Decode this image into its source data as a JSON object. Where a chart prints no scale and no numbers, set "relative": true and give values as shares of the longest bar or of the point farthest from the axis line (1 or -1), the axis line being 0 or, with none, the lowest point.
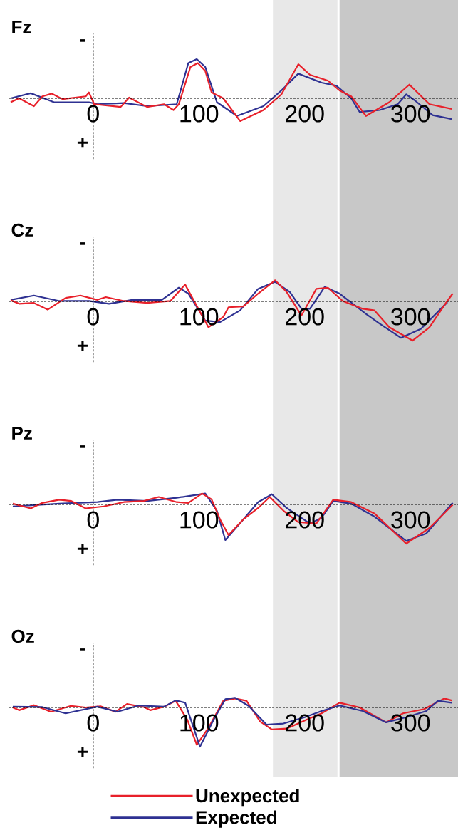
{
  "chart_data": [
    {
      "type": "line",
      "title": "Fz",
      "relative": true,
      "xlim": [
        -80,
        345
      ],
      "xticks": [
        0,
        100,
        200,
        300
      ],
      "tick_labels": "x",
      "annotations": [
        "-",
        "+"
      ],
      "bands": [
        {
          "axis": "x",
          "from": 170,
          "to": 231,
          "color": "#e8e8e8"
        },
        {
          "axis": "x",
          "from": 233,
          "to": 345,
          "color": "#c8c8c8"
        }
      ],
      "series": [
        {
          "color": "#2e3192",
          "x": [
            -78,
            -59,
            -37,
            -4,
            4,
            29,
            51,
            79,
            90,
            98,
            106,
            117,
            136,
            161,
            178,
            194,
            216,
            230,
            244,
            252,
            271,
            288,
            296,
            304,
            321,
            339
          ],
          "values": [
            0,
            0.13,
            -0.1,
            -0.1,
            -0.15,
            -0.12,
            -0.2,
            -0.15,
            0.9,
            1.0,
            0.8,
            -0.1,
            -0.45,
            -0.2,
            0.2,
            0.63,
            0.4,
            0.32,
            0,
            -0.35,
            -0.3,
            -0.15,
            0.1,
            -0.05,
            -0.43,
            -0.53
          ]
        },
        {
          "color": "#e8202a",
          "x": [
            -78,
            -70,
            -56,
            -48,
            -39,
            -29,
            -7,
            -4,
            1,
            26,
            34,
            51,
            67,
            76,
            81,
            92,
            99,
            106,
            112,
            123,
            139,
            161,
            178,
            194,
            205,
            222,
            233,
            244,
            258,
            280,
            299,
            318,
            339
          ],
          "values": [
            -0.1,
            0,
            -0.2,
            0.05,
            0.12,
            -0.02,
            0.05,
            0.15,
            -0.15,
            -0.22,
            0.02,
            -0.22,
            -0.15,
            -0.3,
            -0.15,
            0.8,
            0.9,
            0.7,
            0.15,
            0,
            -0.58,
            -0.3,
            0.1,
            0.87,
            0.6,
            0.45,
            0.2,
            0.05,
            -0.45,
            -0.1,
            0.35,
            -0.15,
            -0.27
          ]
        }
      ]
    },
    {
      "type": "line",
      "title": "Cz",
      "relative": true,
      "xlim": [
        -80,
        345
      ],
      "xticks": [
        0,
        100,
        200,
        300
      ],
      "tick_labels": "x",
      "annotations": [
        "-",
        "+"
      ],
      "bands": [
        {
          "axis": "x",
          "from": 170,
          "to": 231,
          "color": "#e8e8e8"
        },
        {
          "axis": "x",
          "from": 233,
          "to": 345,
          "color": "#c8c8c8"
        }
      ],
      "series": [
        {
          "color": "#2e3192",
          "x": [
            -78,
            -56,
            -32,
            -4,
            15,
            37,
            65,
            81,
            90,
            106,
            120,
            139,
            156,
            172,
            186,
            197,
            205,
            219,
            233,
            258,
            271,
            291,
            310,
            335
          ],
          "values": [
            0.04,
            0.15,
            0.01,
            0.01,
            -0.06,
            0.04,
            0.04,
            0.35,
            0.2,
            -0.49,
            -0.53,
            -0.23,
            0.32,
            0.5,
            0.24,
            -0.19,
            -0.19,
            0.37,
            0.2,
            -0.32,
            -0.57,
            -0.93,
            -0.7,
            -0.02
          ]
        },
        {
          "color": "#e8202a",
          "x": [
            -78,
            -70,
            -56,
            -43,
            -26,
            -12,
            4,
            12,
            29,
            51,
            73,
            87,
            95,
            109,
            123,
            128,
            142,
            156,
            172,
            183,
            197,
            211,
            222,
            236,
            255,
            266,
            280,
            302,
            318,
            332,
            340
          ],
          "values": [
            0.03,
            -0.06,
            -0.04,
            -0.21,
            0.09,
            0.15,
            0.04,
            0.11,
            0.01,
            -0.04,
            0.01,
            0.43,
            0.03,
            -0.66,
            -0.4,
            -0.15,
            -0.13,
            0.2,
            0.54,
            0.24,
            -0.36,
            0.32,
            0.35,
            0.01,
            -0.19,
            -0.23,
            -0.66,
            -1.0,
            -0.66,
            -0.1,
            0.2
          ]
        }
      ]
    },
    {
      "type": "line",
      "title": "Pz",
      "relative": true,
      "xlim": [
        -80,
        345
      ],
      "xticks": [
        0,
        100,
        200,
        300
      ],
      "tick_labels": "x",
      "annotations": [
        "-",
        "+"
      ],
      "bands": [
        {
          "axis": "x",
          "from": 170,
          "to": 231,
          "color": "#e8e8e8"
        },
        {
          "axis": "x",
          "from": 233,
          "to": 345,
          "color": "#c8c8c8"
        }
      ],
      "series": [
        {
          "color": "#2e3192",
          "x": [
            -76,
            -32,
            4,
            23,
            51,
            79,
            106,
            117,
            125,
            142,
            156,
            169,
            183,
            205,
            216,
            227,
            244,
            266,
            296,
            315,
            340
          ],
          "values": [
            -0.05,
            0.02,
            0.06,
            0.12,
            0.09,
            0.17,
            0.28,
            -0.16,
            -0.91,
            -0.38,
            0.06,
            0.26,
            -0.09,
            -0.49,
            -0.34,
            0.09,
            0.02,
            -0.31,
            -0.93,
            -0.74,
            0.04
          ]
        },
        {
          "color": "#e8202a",
          "x": [
            -76,
            -59,
            -48,
            -32,
            -21,
            -7,
            10,
            29,
            48,
            62,
            79,
            90,
            103,
            112,
            120,
            128,
            142,
            156,
            167,
            180,
            194,
            211,
            227,
            244,
            266,
            296,
            318,
            340
          ],
          "values": [
            0.02,
            -0.1,
            0.04,
            0.12,
            0.09,
            -0.1,
            -0.05,
            0.06,
            0.09,
            0.19,
            0.06,
            0.04,
            0.28,
            0.13,
            -0.38,
            -0.78,
            -0.38,
            -0.09,
            0.19,
            -0.16,
            -0.45,
            -0.49,
            0.12,
            0.06,
            -0.23,
            -1.0,
            -0.6,
            -0.01
          ]
        }
      ]
    },
    {
      "type": "line",
      "title": "Oz",
      "relative": true,
      "xlim": [
        -80,
        345
      ],
      "xticks": [
        0,
        100,
        200,
        300
      ],
      "tick_labels": "x",
      "annotations": [
        "-",
        "+"
      ],
      "legend": "bottom",
      "bands": [
        {
          "axis": "x",
          "from": 170,
          "to": 231,
          "color": "#e8e8e8"
        },
        {
          "axis": "x",
          "from": 233,
          "to": 345,
          "color": "#c8c8c8"
        }
      ],
      "series": [
        {
          "name": "Unexpected",
          "color": "#e8202a",
          "x": [
            -76,
            -70,
            -56,
            -40,
            -21,
            -7,
            7,
            21,
            32,
            48,
            54,
            67,
            78,
            89,
            98,
            109,
            123,
            134,
            145,
            158,
            169,
            183,
            202,
            216,
            233,
            252,
            277,
            293,
            313,
            332,
            339
          ],
          "values": [
            0,
            -0.07,
            0.06,
            -0.11,
            0.04,
            0,
            0.03,
            -0.11,
            0.09,
            0.01,
            -0.07,
            0.02,
            0.17,
            -0.31,
            -0.95,
            -0.52,
            0.17,
            0.23,
            0.17,
            -0.36,
            -0.56,
            -0.54,
            -0.31,
            -0.15,
            0.12,
            0,
            -0.38,
            -0.15,
            -0.04,
            0.23,
            0.18
          ]
        },
        {
          "name": "Expected",
          "color": "#2e3192",
          "x": [
            -76,
            -48,
            -26,
            4,
            23,
            43,
            67,
            78,
            87,
            101,
            114,
            125,
            134,
            147,
            164,
            180,
            200,
            216,
            233,
            255,
            277,
            296,
            315,
            326,
            339
          ],
          "values": [
            0.02,
            0.01,
            -0.15,
            0.02,
            -0.11,
            0.05,
            0.02,
            0.18,
            0.12,
            -1.0,
            -0.31,
            0.21,
            0.25,
            0.04,
            -0.44,
            -0.41,
            -0.25,
            -0.09,
            0.05,
            -0.09,
            -0.38,
            -0.25,
            -0.09,
            0.17,
            0.12
          ]
        }
      ]
    }
  ]
}
